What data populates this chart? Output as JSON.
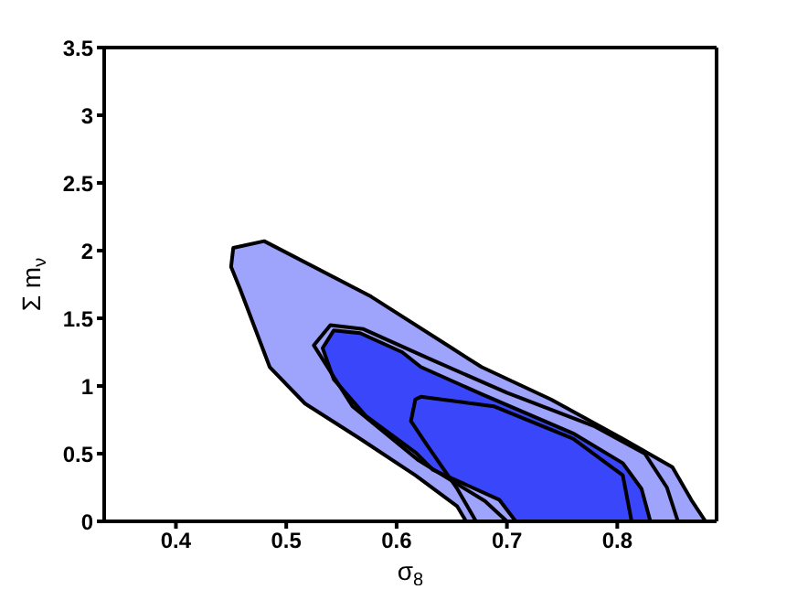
{
  "chart_data": {
    "type": "area",
    "xlabel": "σ$_{8}$",
    "ylabel": "Σ m$_{ν}$",
    "xlim": [
      0.335,
      0.89
    ],
    "ylim": [
      0,
      3.5
    ],
    "xticks": [
      0.4,
      0.5,
      0.6,
      0.7,
      0.8
    ],
    "yticks": [
      0,
      0.5,
      1,
      1.5,
      2,
      2.5,
      3,
      3.5
    ],
    "series": [
      {
        "color": "#9ea3fb",
        "x": [
          0.663,
          0.655,
          0.617,
          0.567,
          0.517,
          0.485,
          0.458,
          0.45,
          0.452,
          0.48,
          0.577,
          0.65,
          0.677,
          0.74,
          0.805,
          0.85,
          0.867,
          0.88,
          0.663
        ],
        "values": [
          0,
          0.11,
          0.34,
          0.61,
          0.87,
          1.14,
          1.72,
          1.88,
          2.02,
          2.07,
          1.66,
          1.28,
          1.14,
          0.9,
          0.61,
          0.4,
          0.16,
          0,
          0
        ]
      },
      {
        "color": "#3a46fa",
        "x": [
          0.708,
          0.693,
          0.633,
          0.617,
          0.572,
          0.543,
          0.533,
          0.543,
          0.567,
          0.605,
          0.622,
          0.677,
          0.76,
          0.805,
          0.822,
          0.83,
          0.708
        ],
        "values": [
          0,
          0.16,
          0.38,
          0.51,
          0.78,
          1.05,
          1.28,
          1.41,
          1.39,
          1.25,
          1.14,
          0.94,
          0.65,
          0.43,
          0.24,
          0,
          0
        ]
      },
      {
        "type": "line",
        "color": "#000000",
        "x": [
          0.7,
          0.68,
          0.62,
          0.56,
          0.525,
          0.54,
          0.57,
          0.63,
          0.7,
          0.78,
          0.825,
          0.845,
          0.855
        ],
        "values": [
          0,
          0.15,
          0.45,
          0.85,
          1.3,
          1.45,
          1.42,
          1.2,
          0.95,
          0.7,
          0.5,
          0.25,
          0
        ]
      },
      {
        "type": "line",
        "color": "#000000",
        "x": [
          0.672,
          0.655,
          0.627,
          0.613,
          0.617,
          0.622,
          0.688,
          0.76,
          0.805,
          0.813
        ],
        "values": [
          0,
          0.24,
          0.57,
          0.74,
          0.9,
          0.92,
          0.85,
          0.61,
          0.34,
          0
        ]
      }
    ]
  }
}
